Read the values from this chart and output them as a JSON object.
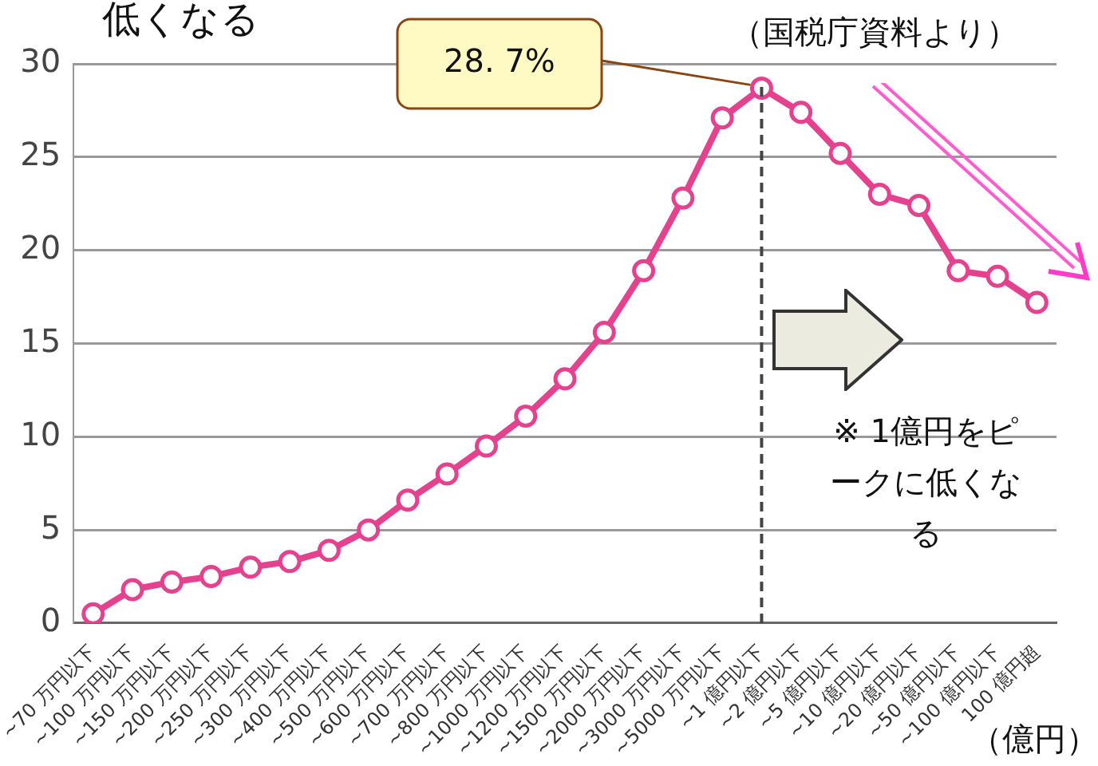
{
  "chart_data": {
    "type": "line",
    "title": "低くなる",
    "categories": [
      "~70 万円以下",
      "~100 万円以下",
      "~150 万円以下",
      "~200 万円以下",
      "~250 万円以下",
      "~300 万円以下",
      "~400 万円以下",
      "~500 万円以下",
      "~600 万円以下",
      "~700 万円以下",
      "~800 万円以下",
      "~1000 万円以下",
      "~1200 万円以下",
      "~1500 万円以下",
      "~2000 万円以下",
      "~3000 万円以下",
      "~5000 万円以下",
      "~1 億円以下",
      "~2 億円以下",
      "~5 億円以下",
      "~10 億円以下",
      "~20 億円以下",
      "~50 億円以下",
      "~100 億円以下",
      "100 億円超"
    ],
    "series": [
      {
        "color": "#e4418f",
        "values": [
          0.5,
          1.8,
          2.2,
          2.5,
          3.0,
          3.3,
          3.9,
          5.0,
          6.6,
          8.0,
          9.5,
          11.1,
          13.1,
          15.6,
          18.9,
          22.8,
          27.1,
          28.7,
          27.4,
          25.2,
          23.0,
          22.4,
          18.9,
          18.6,
          17.2
        ]
      }
    ],
    "ylim": [
      0,
      30
    ],
    "yticks": [
      0,
      5,
      10,
      15,
      20,
      25,
      30
    ],
    "grid": "y",
    "marker": "circle",
    "line_style": "solid",
    "legend": false,
    "ref_lines": [
      {
        "axis": "x",
        "value": "~1 億円以下",
        "line_style": "dashed",
        "color": "#444444"
      }
    ],
    "annotations": [
      "28. 7%",
      "（国税庁資料より）",
      "※ 1億円をピークに低くなる",
      "（億円）"
    ]
  }
}
